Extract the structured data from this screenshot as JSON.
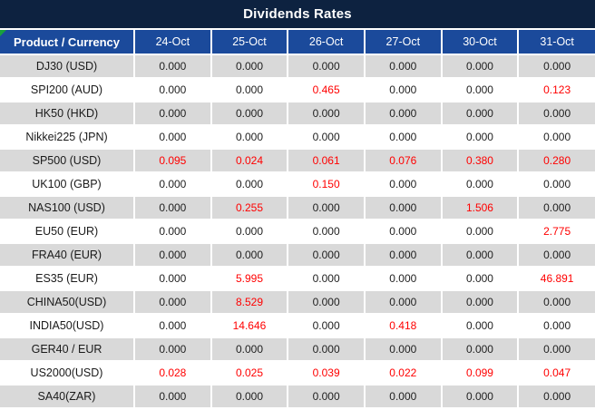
{
  "title": "Dividends Rates",
  "colors": {
    "title_bg": "#0D2240",
    "header_bg": "#1B4A9B",
    "row_alt": "#D9D9D9",
    "value_red": "#FF0000",
    "value_dark": "#1F1F1F",
    "flag_green": "#18A03C"
  },
  "table": {
    "corner_header": "Product / Currency",
    "date_headers": [
      "24-Oct",
      "25-Oct",
      "26-Oct",
      "27-Oct",
      "30-Oct",
      "31-Oct"
    ],
    "rows": [
      {
        "product": "DJ30 (USD)",
        "values": [
          "0.000",
          "0.000",
          "0.000",
          "0.000",
          "0.000",
          "0.000"
        ],
        "red": [
          false,
          false,
          false,
          false,
          false,
          false
        ]
      },
      {
        "product": "SPI200 (AUD)",
        "values": [
          "0.000",
          "0.000",
          "0.465",
          "0.000",
          "0.000",
          "0.123"
        ],
        "red": [
          false,
          false,
          true,
          false,
          false,
          true
        ]
      },
      {
        "product": "HK50 (HKD)",
        "values": [
          "0.000",
          "0.000",
          "0.000",
          "0.000",
          "0.000",
          "0.000"
        ],
        "red": [
          false,
          false,
          false,
          false,
          false,
          false
        ]
      },
      {
        "product": "Nikkei225 (JPN)",
        "values": [
          "0.000",
          "0.000",
          "0.000",
          "0.000",
          "0.000",
          "0.000"
        ],
        "red": [
          false,
          false,
          false,
          false,
          false,
          false
        ]
      },
      {
        "product": "SP500 (USD)",
        "values": [
          "0.095",
          "0.024",
          "0.061",
          "0.076",
          "0.380",
          "0.280"
        ],
        "red": [
          true,
          true,
          true,
          true,
          true,
          true
        ]
      },
      {
        "product": "UK100 (GBP)",
        "values": [
          "0.000",
          "0.000",
          "0.150",
          "0.000",
          "0.000",
          "0.000"
        ],
        "red": [
          false,
          false,
          true,
          false,
          false,
          false
        ]
      },
      {
        "product": "NAS100 (USD)",
        "values": [
          "0.000",
          "0.255",
          "0.000",
          "0.000",
          "1.506",
          "0.000"
        ],
        "red": [
          false,
          true,
          false,
          false,
          true,
          false
        ]
      },
      {
        "product": "EU50 (EUR)",
        "values": [
          "0.000",
          "0.000",
          "0.000",
          "0.000",
          "0.000",
          "2.775"
        ],
        "red": [
          false,
          false,
          false,
          false,
          false,
          true
        ]
      },
      {
        "product": "FRA40 (EUR)",
        "values": [
          "0.000",
          "0.000",
          "0.000",
          "0.000",
          "0.000",
          "0.000"
        ],
        "red": [
          false,
          false,
          false,
          false,
          false,
          false
        ]
      },
      {
        "product": "ES35 (EUR)",
        "values": [
          "0.000",
          "5.995",
          "0.000",
          "0.000",
          "0.000",
          "46.891"
        ],
        "red": [
          false,
          true,
          false,
          false,
          false,
          true
        ]
      },
      {
        "product": "CHINA50(USD)",
        "values": [
          "0.000",
          "8.529",
          "0.000",
          "0.000",
          "0.000",
          "0.000"
        ],
        "red": [
          false,
          true,
          false,
          false,
          false,
          false
        ]
      },
      {
        "product": "INDIA50(USD)",
        "values": [
          "0.000",
          "14.646",
          "0.000",
          "0.418",
          "0.000",
          "0.000"
        ],
        "red": [
          false,
          true,
          false,
          true,
          false,
          false
        ]
      },
      {
        "product": "GER40 / EUR",
        "values": [
          "0.000",
          "0.000",
          "0.000",
          "0.000",
          "0.000",
          "0.000"
        ],
        "red": [
          false,
          false,
          false,
          false,
          false,
          false
        ]
      },
      {
        "product": "US2000(USD)",
        "values": [
          "0.028",
          "0.025",
          "0.039",
          "0.022",
          "0.099",
          "0.047"
        ],
        "red": [
          true,
          true,
          true,
          true,
          true,
          true
        ]
      },
      {
        "product": "SA40(ZAR)",
        "values": [
          "0.000",
          "0.000",
          "0.000",
          "0.000",
          "0.000",
          "0.000"
        ],
        "red": [
          false,
          false,
          false,
          false,
          false,
          false
        ]
      }
    ]
  }
}
